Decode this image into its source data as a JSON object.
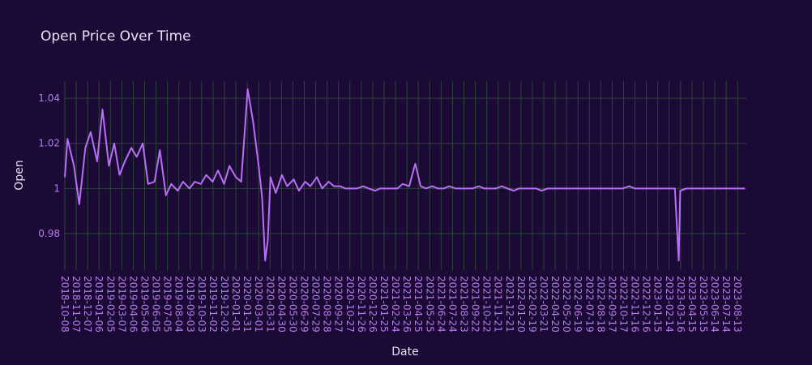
{
  "chart_data": {
    "type": "line",
    "title": "Open Price Over Time",
    "x_label": "Date",
    "y_label": "Open",
    "color": "#b86ff5",
    "grid": true,
    "xlim": [
      "2018-10-08",
      "2023-09-05"
    ],
    "ylim": [
      0.9638,
      1.0476
    ],
    "yticks": [
      0.98,
      1,
      1.02,
      1.04
    ],
    "xticks": [
      "2018-10-08",
      "2018-11-07",
      "2018-12-07",
      "2019-01-06",
      "2019-02-05",
      "2019-03-07",
      "2019-04-06",
      "2019-05-06",
      "2019-06-05",
      "2019-07-05",
      "2019-08-04",
      "2019-09-03",
      "2019-10-03",
      "2019-11-02",
      "2019-12-02",
      "2020-01-01",
      "2020-01-31",
      "2020-03-01",
      "2020-03-31",
      "2020-04-30",
      "2020-05-30",
      "2020-06-29",
      "2020-07-29",
      "2020-08-28",
      "2020-09-27",
      "2020-10-27",
      "2020-11-26",
      "2020-12-26",
      "2021-01-25",
      "2021-02-24",
      "2021-03-26",
      "2021-04-25",
      "2021-05-25",
      "2021-06-24",
      "2021-07-24",
      "2021-08-23",
      "2021-09-22",
      "2021-10-22",
      "2021-11-21",
      "2021-12-21",
      "2022-01-20",
      "2022-02-19",
      "2022-03-21",
      "2022-04-20",
      "2022-05-20",
      "2022-06-19",
      "2022-07-19",
      "2022-08-18",
      "2022-09-17",
      "2022-10-17",
      "2022-11-16",
      "2022-12-16",
      "2023-01-15",
      "2023-02-14",
      "2023-03-16",
      "2023-04-15",
      "2023-05-15",
      "2023-06-14",
      "2023-07-14",
      "2023-08-13"
    ],
    "x": [
      "2018-10-08",
      "2018-10-15",
      "2018-11-01",
      "2018-11-15",
      "2018-12-01",
      "2018-12-15",
      "2019-01-01",
      "2019-01-15",
      "2019-02-01",
      "2019-02-15",
      "2019-03-01",
      "2019-03-15",
      "2019-04-01",
      "2019-04-15",
      "2019-05-01",
      "2019-05-15",
      "2019-06-01",
      "2019-06-15",
      "2019-07-01",
      "2019-07-15",
      "2019-08-01",
      "2019-08-15",
      "2019-09-01",
      "2019-09-15",
      "2019-10-01",
      "2019-10-15",
      "2019-11-01",
      "2019-11-15",
      "2019-12-01",
      "2019-12-15",
      "2020-01-01",
      "2020-01-15",
      "2020-02-01",
      "2020-02-15",
      "2020-03-01",
      "2020-03-10",
      "2020-03-18",
      "2020-03-25",
      "2020-04-01",
      "2020-04-15",
      "2020-05-01",
      "2020-05-15",
      "2020-06-01",
      "2020-06-15",
      "2020-07-01",
      "2020-07-15",
      "2020-08-01",
      "2020-08-15",
      "2020-09-01",
      "2020-09-15",
      "2020-10-01",
      "2020-10-15",
      "2020-11-01",
      "2020-11-15",
      "2020-12-01",
      "2020-12-15",
      "2021-01-01",
      "2021-01-15",
      "2021-02-01",
      "2021-02-15",
      "2021-03-01",
      "2021-03-15",
      "2021-04-01",
      "2021-04-17",
      "2021-05-01",
      "2021-05-15",
      "2021-06-01",
      "2021-06-15",
      "2021-07-01",
      "2021-07-15",
      "2021-08-01",
      "2021-08-15",
      "2021-09-01",
      "2021-09-15",
      "2021-10-01",
      "2021-10-15",
      "2021-11-01",
      "2021-11-15",
      "2021-12-01",
      "2021-12-15",
      "2022-01-01",
      "2022-01-15",
      "2022-02-01",
      "2022-02-15",
      "2022-03-01",
      "2022-03-15",
      "2022-04-01",
      "2022-04-15",
      "2022-05-01",
      "2022-05-15",
      "2022-06-01",
      "2022-06-15",
      "2022-07-01",
      "2022-07-15",
      "2022-08-01",
      "2022-08-15",
      "2022-09-01",
      "2022-09-15",
      "2022-10-01",
      "2022-10-15",
      "2022-11-01",
      "2022-11-15",
      "2022-12-01",
      "2022-12-15",
      "2023-01-01",
      "2023-01-15",
      "2023-02-01",
      "2023-02-15",
      "2023-03-01",
      "2023-03-11",
      "2023-03-15",
      "2023-04-01",
      "2023-04-15",
      "2023-05-01",
      "2023-05-15",
      "2023-06-01",
      "2023-06-15",
      "2023-07-01",
      "2023-07-15",
      "2023-08-01",
      "2023-08-15",
      "2023-09-01"
    ],
    "values": [
      1.005,
      1.022,
      1.01,
      0.993,
      1.018,
      1.025,
      1.012,
      1.035,
      1.01,
      1.02,
      1.006,
      1.012,
      1.018,
      1.014,
      1.02,
      1.002,
      1.003,
      1.017,
      0.997,
      1.002,
      0.999,
      1.003,
      1.0,
      1.003,
      1.002,
      1.006,
      1.003,
      1.008,
      1.002,
      1.01,
      1.005,
      1.003,
      1.044,
      1.03,
      1.01,
      0.996,
      0.968,
      0.977,
      1.005,
      0.998,
      1.006,
      1.001,
      1.004,
      0.999,
      1.003,
      1.001,
      1.005,
      1.0,
      1.003,
      1.001,
      1.001,
      1.0,
      1.0,
      1.0,
      1.001,
      1.0,
      0.999,
      1.0,
      1.0,
      1.0,
      1.0,
      1.002,
      1.001,
      1.011,
      1.001,
      1.0,
      1.001,
      1.0,
      1.0,
      1.001,
      1.0,
      1.0,
      1.0,
      1.0,
      1.001,
      1.0,
      1.0,
      1.0,
      1.001,
      1.0,
      0.999,
      1.0,
      1.0,
      1.0,
      1.0,
      0.999,
      1.0,
      1.0,
      1.0,
      1.0,
      1.0,
      1.0,
      1.0,
      1.0,
      1.0,
      1.0,
      1.0,
      1.0,
      1.0,
      1.0,
      1.001,
      1.0,
      1.0,
      1.0,
      1.0,
      1.0,
      1.0,
      1.0,
      1.0,
      0.968,
      0.999,
      1.0,
      1.0,
      1.0,
      1.0,
      1.0,
      1.0,
      1.0,
      1.0,
      1.0,
      1.0,
      1.0
    ]
  }
}
